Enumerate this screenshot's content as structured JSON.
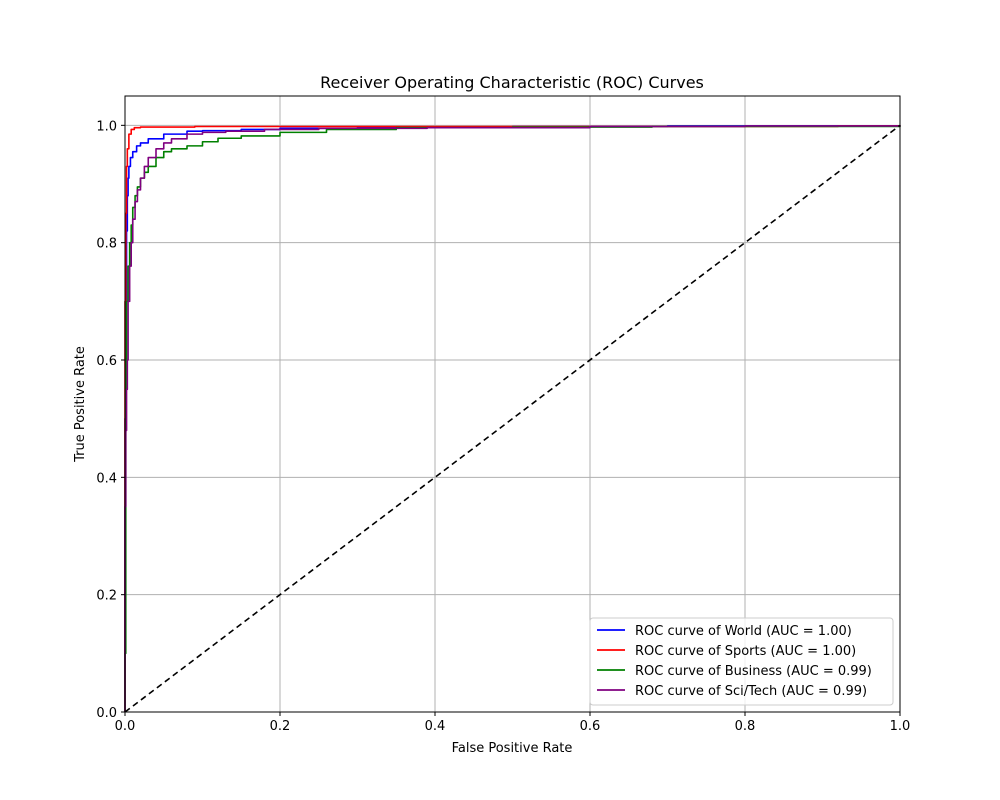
{
  "chart_data": {
    "type": "line",
    "title": "Receiver Operating Characteristic (ROC) Curves",
    "xlabel": "False Positive Rate",
    "ylabel": "True Positive Rate",
    "xlim": [
      0.0,
      1.0
    ],
    "ylim": [
      0.0,
      1.05
    ],
    "xticks": [
      0.0,
      0.2,
      0.4,
      0.6,
      0.8,
      1.0
    ],
    "yticks": [
      0.0,
      0.2,
      0.4,
      0.6,
      0.8,
      1.0
    ],
    "xtick_labels": [
      "0.0",
      "0.2",
      "0.4",
      "0.6",
      "0.8",
      "1.0"
    ],
    "ytick_labels": [
      "0.0",
      "0.2",
      "0.4",
      "0.6",
      "0.8",
      "1.0"
    ],
    "grid": true,
    "legend_position": "lower-right",
    "series": [
      {
        "name": "ROC curve of World (AUC = 1.00)",
        "color": "#0000ff",
        "x": [
          0.0,
          0.0,
          0.001,
          0.002,
          0.003,
          0.004,
          0.005,
          0.007,
          0.01,
          0.015,
          0.02,
          0.03,
          0.05,
          0.08,
          0.1,
          0.15,
          0.2,
          0.3,
          0.5,
          0.7,
          1.0
        ],
        "y": [
          0.0,
          0.5,
          0.7,
          0.82,
          0.88,
          0.91,
          0.93,
          0.945,
          0.955,
          0.965,
          0.97,
          0.977,
          0.985,
          0.99,
          0.991,
          0.993,
          0.995,
          0.997,
          0.998,
          0.999,
          1.0
        ]
      },
      {
        "name": "ROC curve of Sports (AUC = 1.00)",
        "color": "#ff0000",
        "x": [
          0.0,
          0.0,
          0.001,
          0.002,
          0.003,
          0.005,
          0.008,
          0.012,
          0.02,
          0.05,
          0.09,
          0.2,
          0.4,
          0.6,
          0.8,
          0.92,
          1.0
        ],
        "y": [
          0.0,
          0.7,
          0.85,
          0.93,
          0.96,
          0.985,
          0.993,
          0.996,
          0.997,
          0.997,
          0.998,
          0.998,
          0.998,
          0.998,
          0.998,
          0.999,
          1.0
        ]
      },
      {
        "name": "ROC curve of Business (AUC = 0.99)",
        "color": "#008000",
        "x": [
          0.0,
          0.0,
          0.001,
          0.002,
          0.004,
          0.006,
          0.008,
          0.01,
          0.013,
          0.016,
          0.02,
          0.025,
          0.03,
          0.04,
          0.05,
          0.06,
          0.08,
          0.1,
          0.12,
          0.15,
          0.2,
          0.26,
          0.35,
          0.5,
          0.68,
          1.0
        ],
        "y": [
          0.0,
          0.1,
          0.6,
          0.7,
          0.76,
          0.8,
          0.83,
          0.86,
          0.88,
          0.895,
          0.91,
          0.92,
          0.93,
          0.945,
          0.955,
          0.96,
          0.965,
          0.972,
          0.978,
          0.982,
          0.988,
          0.993,
          0.996,
          0.997,
          0.998,
          1.0
        ]
      },
      {
        "name": "ROC curve of Sci/Tech (AUC = 0.99)",
        "color": "#800080",
        "x": [
          0.0,
          0.0,
          0.001,
          0.002,
          0.003,
          0.004,
          0.006,
          0.008,
          0.01,
          0.013,
          0.016,
          0.02,
          0.025,
          0.03,
          0.04,
          0.05,
          0.06,
          0.08,
          0.1,
          0.13,
          0.18,
          0.25,
          0.39,
          0.6,
          0.8,
          1.0
        ],
        "y": [
          0.0,
          0.35,
          0.48,
          0.55,
          0.6,
          0.7,
          0.76,
          0.8,
          0.84,
          0.87,
          0.89,
          0.91,
          0.93,
          0.945,
          0.96,
          0.97,
          0.977,
          0.985,
          0.988,
          0.99,
          0.993,
          0.995,
          0.996,
          0.998,
          0.999,
          1.0
        ]
      }
    ],
    "reference_line": {
      "color": "#000000",
      "dashed": true,
      "x": [
        0.0,
        1.0
      ],
      "y": [
        0.0,
        1.0
      ]
    }
  }
}
